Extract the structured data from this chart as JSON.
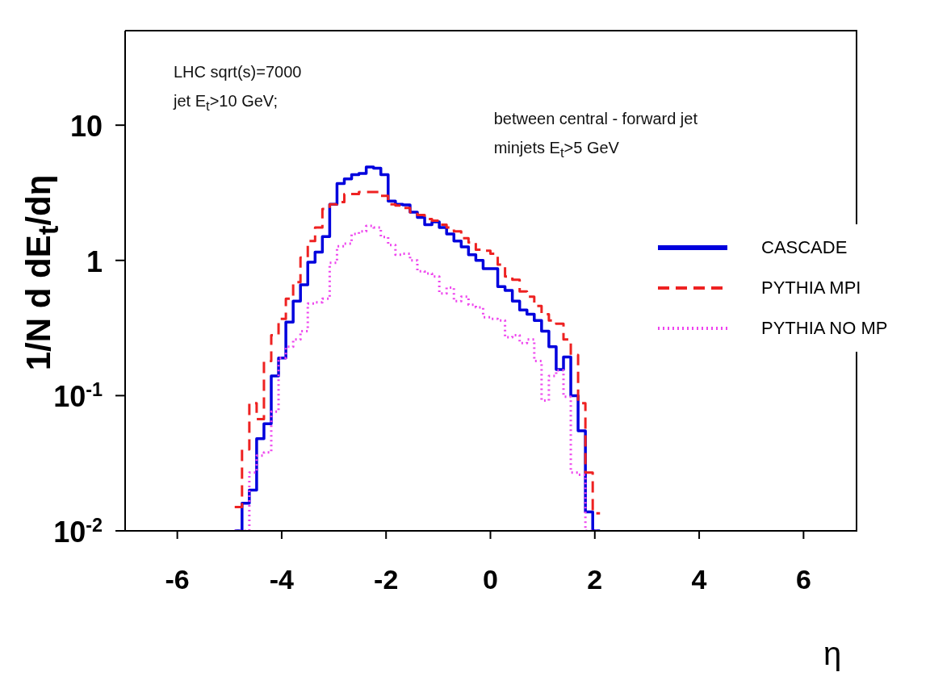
{
  "chart_data": {
    "type": "histogram",
    "xlabel": "η",
    "ylabel": "1/N d dE$_{t}$/dη",
    "annotations": [
      "LHC sqrt(s)=7000",
      "jet  E$_{t}$>10 GeV;",
      "between central - forward jet",
      "minjets E$_{t}$>5 GeV"
    ],
    "bins": [
      -4.9,
      -4.76,
      -4.62,
      -4.48,
      -4.34,
      -4.2,
      -4.06,
      -3.92,
      -3.78,
      -3.64,
      -3.5,
      -3.36,
      -3.22,
      -3.08,
      -2.94,
      -2.8,
      -2.66,
      -2.52,
      -2.38,
      -2.24,
      -2.1,
      -1.96,
      -1.82,
      -1.68,
      -1.54,
      -1.4,
      -1.26,
      -1.12,
      -0.98,
      -0.84,
      -0.7,
      -0.56,
      -0.42,
      -0.28,
      -0.14,
      0,
      0.14,
      0.28,
      0.42,
      0.56,
      0.7,
      0.84,
      0.98,
      1.12,
      1.26,
      1.4,
      1.54,
      1.68,
      1.82,
      1.96,
      2.1
    ],
    "series": [
      {
        "name": "CASCADE",
        "color": "#0000dd",
        "line_style": "solid",
        "values": [
          null,
          0.016,
          0.02,
          0.048,
          0.062,
          0.14,
          0.19,
          0.35,
          0.5,
          0.66,
          0.97,
          1.15,
          1.5,
          2.6,
          3.7,
          4.0,
          4.3,
          4.4,
          4.9,
          4.8,
          4.3,
          2.75,
          2.6,
          2.57,
          2.27,
          2.08,
          1.84,
          1.93,
          1.75,
          1.57,
          1.39,
          1.26,
          1.1,
          1.0,
          0.87,
          0.87,
          0.64,
          0.6,
          0.5,
          0.43,
          0.4,
          0.36,
          0.3,
          0.23,
          0.156,
          0.193,
          0.1,
          0.055,
          0.0138,
          null
        ]
      },
      {
        "name": "PYTHIA MPI",
        "color": "#ee2222",
        "line_style": "dashed",
        "values": [
          0.015,
          0.04,
          0.088,
          0.067,
          0.18,
          0.28,
          0.37,
          0.52,
          0.69,
          1.05,
          1.39,
          1.75,
          2.4,
          2.6,
          2.7,
          3.1,
          3.1,
          3.2,
          3.2,
          3.2,
          3.0,
          2.6,
          2.55,
          2.44,
          2.27,
          2.17,
          2.02,
          1.97,
          1.84,
          1.75,
          1.64,
          1.46,
          1.36,
          1.2,
          1.18,
          1.12,
          0.93,
          0.76,
          0.72,
          0.59,
          0.54,
          0.46,
          0.4,
          0.36,
          0.34,
          0.26,
          0.2,
          0.088,
          0.027,
          0.0135
        ]
      },
      {
        "name": "PYTHIA NO MP",
        "color": "#ee44ee",
        "line_style": "dotted",
        "values": [
          null,
          null,
          0.027,
          0.036,
          0.038,
          0.076,
          0.19,
          0.23,
          0.26,
          0.3,
          0.48,
          0.49,
          0.52,
          0.96,
          1.27,
          1.33,
          1.57,
          1.64,
          1.8,
          1.75,
          1.49,
          1.3,
          1.1,
          1.12,
          1.0,
          0.83,
          0.8,
          0.76,
          0.57,
          0.63,
          0.5,
          0.54,
          0.47,
          0.45,
          0.38,
          0.37,
          0.36,
          0.27,
          0.28,
          0.245,
          0.26,
          0.18,
          0.092,
          0.14,
          0.154,
          0.098,
          0.027,
          0.026,
          null,
          null
        ]
      }
    ],
    "xlim": [
      -7,
      7
    ],
    "xticks": [
      -6,
      -4,
      -2,
      0,
      2,
      4,
      6
    ],
    "ylim": [
      0.01,
      50
    ],
    "log": "y",
    "yticks": [
      {
        "value": 0.01,
        "label": "10$^{-2}$"
      },
      {
        "value": 0.1,
        "label": "10$^{-1}$"
      },
      1,
      10
    ],
    "legend": "right"
  }
}
